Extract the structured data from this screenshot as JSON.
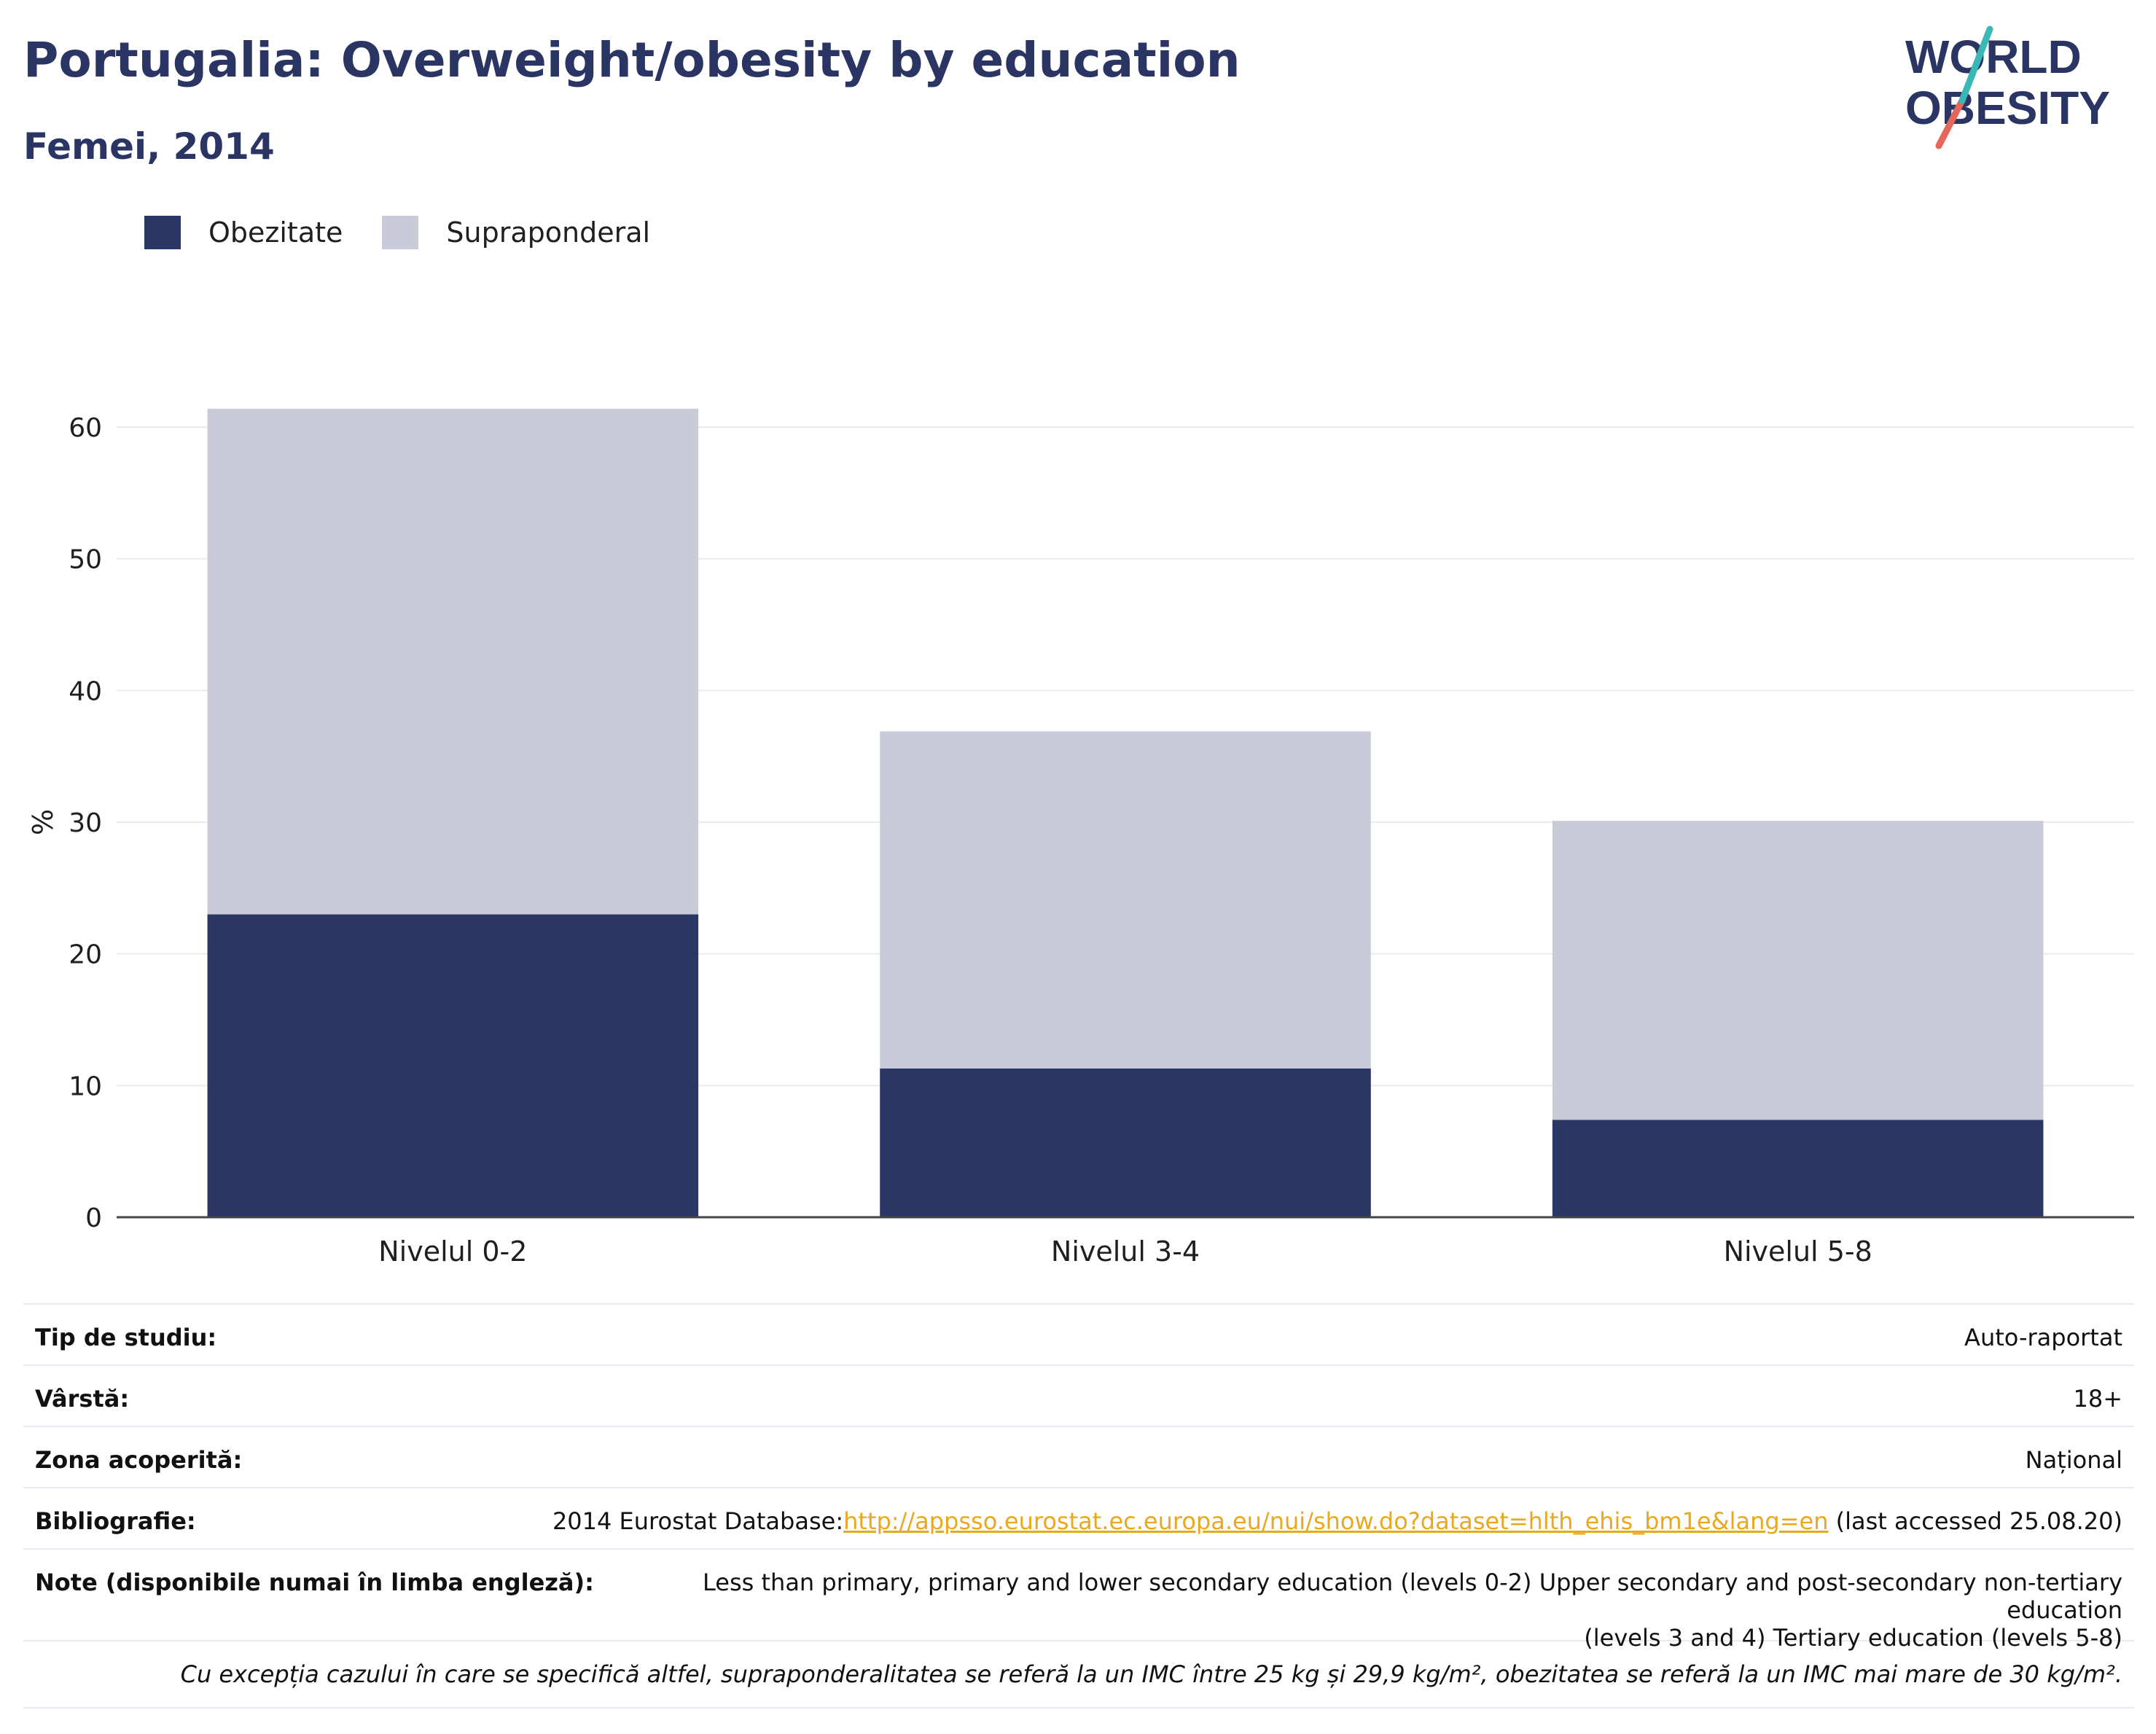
{
  "header": {
    "title": "Portugalia: Overweight/obesity by education",
    "subtitle": "Femei, 2014",
    "logo_line1": "WORLD",
    "logo_line2": "OBESITY"
  },
  "colors": {
    "obesity": "#2a3663",
    "overweight": "#c9ccd8",
    "accent_link": "#e9a820",
    "title": "#2a3563"
  },
  "chart_data": {
    "type": "bar",
    "stacked": true,
    "categories": [
      "Nivelul 0-2",
      "Nivelul 3-4",
      "Nivelul 5-8"
    ],
    "series": [
      {
        "name": "Obezitate",
        "values": [
          23.0,
          11.3,
          7.4
        ]
      },
      {
        "name": "Supraponderal",
        "values": [
          38.4,
          25.6,
          22.7
        ]
      }
    ],
    "ylabel": "%",
    "ylim": [
      0,
      65
    ],
    "yticks": [
      0,
      10,
      20,
      30,
      40,
      50,
      60
    ],
    "legend_position": "top-left",
    "grid": true
  },
  "info": {
    "rows": [
      {
        "label": "Tip de studiu:",
        "value": "Auto-raportat"
      },
      {
        "label": "Vârstă:",
        "value": "18+"
      },
      {
        "label": "Zona acoperită:",
        "value": "Național"
      }
    ],
    "bibliography": {
      "label": "Bibliografie:",
      "prefix": "2014 Eurostat Database:",
      "link": "http://appsso.eurostat.ec.europa.eu/nui/show.do?dataset=hlth_ehis_bm1e&lang=en",
      "suffix": " (last accessed 25.08.20)"
    },
    "notes": {
      "label": "Note (disponibile numai în limba engleză):",
      "line1": "Less than primary, primary and lower secondary education (levels 0-2) Upper secondary and post-secondary non-tertiary education",
      "line2": "(levels 3 and 4) Tertiary education (levels 5-8)"
    },
    "footnote": "Cu excepția cazului în care se specifică altfel, supraponderalitatea se referă la un IMC între 25 kg și 29,9 kg/m², obezitatea se referă la un IMC mai mare de 30 kg/m²."
  }
}
